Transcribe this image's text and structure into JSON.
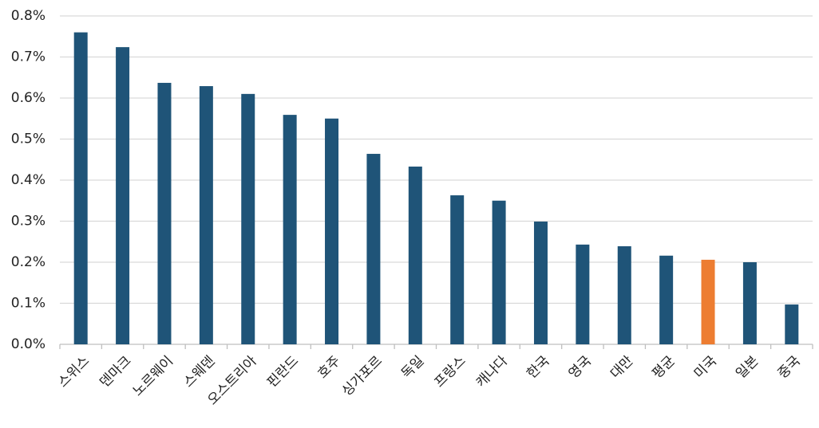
{
  "chart_data": {
    "type": "bar",
    "categories": [
      "스위스",
      "덴마크",
      "노르웨이",
      "스웨덴",
      "오스트리아",
      "핀란드",
      "호주",
      "싱가포르",
      "독일",
      "프랑스",
      "캐나다",
      "한국",
      "영국",
      "대만",
      "평균",
      "미국",
      "일본",
      "중국"
    ],
    "values": [
      0.76,
      0.724,
      0.637,
      0.629,
      0.61,
      0.559,
      0.55,
      0.464,
      0.433,
      0.363,
      0.35,
      0.299,
      0.243,
      0.239,
      0.216,
      0.206,
      0.2,
      0.097
    ],
    "colors": [
      "#1f5478",
      "#1f5478",
      "#1f5478",
      "#1f5478",
      "#1f5478",
      "#1f5478",
      "#1f5478",
      "#1f5478",
      "#1f5478",
      "#1f5478",
      "#1f5478",
      "#1f5478",
      "#1f5478",
      "#1f5478",
      "#1f5478",
      "#ed7d31",
      "#1f5478",
      "#1f5478"
    ],
    "ylim": [
      0,
      0.8
    ],
    "yticks": [
      {
        "value": 0,
        "label": "0.0%"
      },
      {
        "value": 0.1,
        "label": "0.1%"
      },
      {
        "value": 0.2,
        "label": "0.2%"
      },
      {
        "value": 0.3,
        "label": "0.3%"
      },
      {
        "value": 0.4,
        "label": "0.4%"
      },
      {
        "value": 0.5,
        "label": "0.5%"
      },
      {
        "value": 0.6,
        "label": "0.6%"
      },
      {
        "value": 0.7,
        "label": "0.7%"
      },
      {
        "value": 0.8,
        "label": "0.8%"
      }
    ],
    "grid": true
  }
}
